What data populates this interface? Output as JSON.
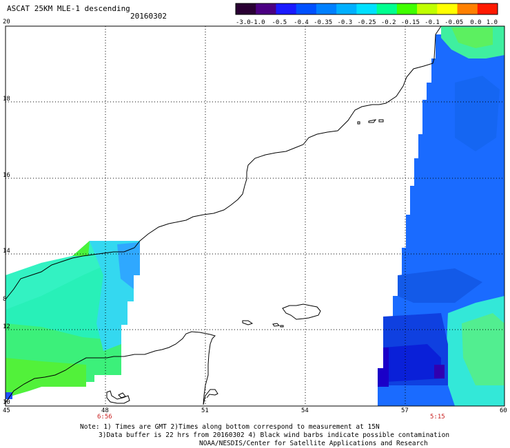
{
  "header": {
    "title": "ASCAT 25KM MLE-1 descending",
    "date": "20160302"
  },
  "colorbar": {
    "labels": [
      "-3.0",
      "-1.0",
      "-0.5",
      "-0.4",
      "-0.35",
      "-0.3",
      "-0.25",
      "-0.2",
      "-0.15",
      "-0.1",
      "-0.05",
      "0.0",
      "1.0"
    ],
    "colors": [
      "#2a0033",
      "#4b0082",
      "#1a1aff",
      "#0050ff",
      "#0080ff",
      "#00b0ff",
      "#00e0ff",
      "#00ff90",
      "#40ff00",
      "#c0ff00",
      "#ffff00",
      "#ff8000",
      "#ff1a00"
    ]
  },
  "axes": {
    "lat_labels": [
      "20",
      "18",
      "16",
      "14",
      "12",
      "10"
    ],
    "lon_labels": [
      "45",
      "48",
      "51",
      "54",
      "57",
      "60"
    ],
    "partial_label": "8"
  },
  "pass_times": [
    "6:56",
    "5:15"
  ],
  "footer": {
    "line1": "Note: 1) Times are GMT 2)Times along bottom correspond to measurement at 15N",
    "line2": "3)Data buffer is 22 hrs from 20160302 4) Black wind barbs indicate possible contamination",
    "line3": "NOAA/NESDIS/Center for Satellite Applications and Research"
  }
}
